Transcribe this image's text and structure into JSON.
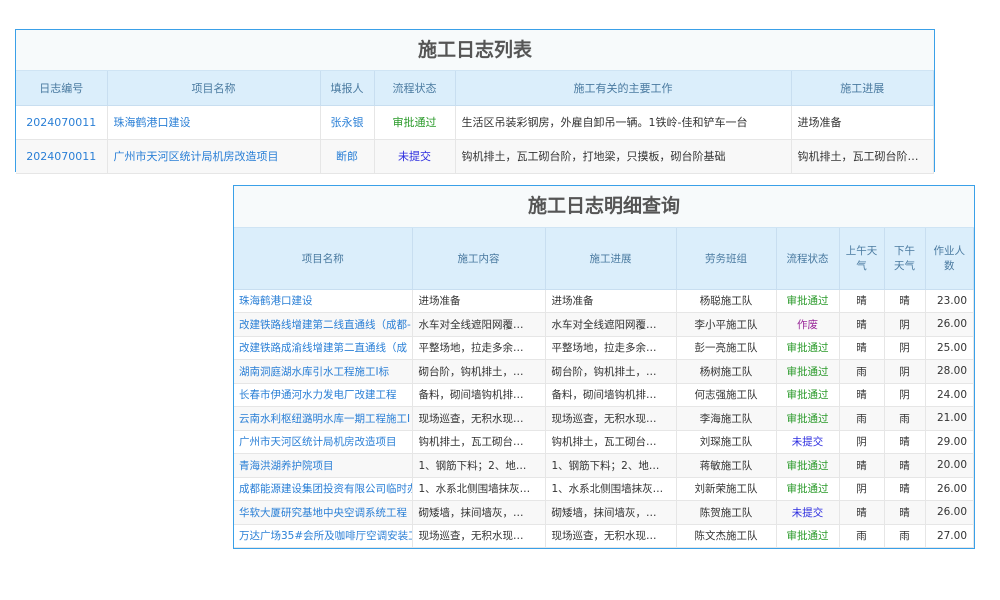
{
  "list": {
    "title": "施工日志列表",
    "headers": [
      "日志编号",
      "项目名称",
      "填报人",
      "流程状态",
      "施工有关的主要工作",
      "施工进展"
    ],
    "rows": [
      {
        "id": "2024070011",
        "project": "珠海鹤港口建设",
        "reporter": "张永银",
        "status": "审批通过",
        "work": "生活区吊装彩钢房，外雇自卸吊一辆。1铁岭-佳和铲车一台",
        "progress": "进场准备"
      },
      {
        "id": "2024070011",
        "project": "广州市天河区统计局机房改造项目",
        "reporter": "断郎",
        "status": "未提交",
        "work": "钩机排土，瓦工砌台阶，打地梁，只摸板，砌台阶基础",
        "progress": "钩机排土，瓦工砌台阶基础"
      }
    ]
  },
  "detail": {
    "title": "施工日志明细查询",
    "headers": [
      "项目名称",
      "施工内容",
      "施工进展",
      "劳务班组",
      "流程状态",
      "上午天气",
      "下午天气",
      "作业人数"
    ],
    "rows": [
      {
        "project": "珠海鹤港口建设",
        "content": "进场准备",
        "progress": "进场准备",
        "team": "杨聪施工队",
        "status": "审批通过",
        "am": "晴",
        "pm": "晴",
        "workers": "23.00"
      },
      {
        "project": "改建铁路线增建第二线直通线（成都-",
        "content": "水车对全线遮阳网覆…",
        "progress": "水车对全线遮阳网覆…",
        "team": "李小平施工队",
        "status": "作废",
        "am": "晴",
        "pm": "阴",
        "workers": "26.00"
      },
      {
        "project": "改建铁路成渝线增建第二直通线（成",
        "content": "平整场地，拉走多余…",
        "progress": "平整场地，拉走多余…",
        "team": "彭一亮施工队",
        "status": "审批通过",
        "am": "晴",
        "pm": "阴",
        "workers": "25.00"
      },
      {
        "project": "湖南洞庭湖水库引水工程施工I标",
        "content": "砌台阶，钩机排土，…",
        "progress": "砌台阶，钩机排土，…",
        "team": "杨树施工队",
        "status": "审批通过",
        "am": "雨",
        "pm": "阴",
        "workers": "28.00"
      },
      {
        "project": "长春市伊通河水力发电厂改建工程",
        "content": "备料，砌间墙钩机排…",
        "progress": "备料，砌间墙钩机排…",
        "team": "何志强施工队",
        "status": "审批通过",
        "am": "晴",
        "pm": "阴",
        "workers": "24.00"
      },
      {
        "project": "云南水利枢纽潞明水库一期工程施工I",
        "content": "现场巡查，无积水现…",
        "progress": "现场巡查，无积水现…",
        "team": "李海施工队",
        "status": "审批通过",
        "am": "雨",
        "pm": "雨",
        "workers": "21.00"
      },
      {
        "project": "广州市天河区统计局机房改造项目",
        "content": "钩机排土，瓦工砌台…",
        "progress": "钩机排土，瓦工砌台…",
        "team": "刘琛施工队",
        "status": "未提交",
        "am": "阴",
        "pm": "晴",
        "workers": "29.00"
      },
      {
        "project": "青海洪湖养护院项目",
        "content": "1、钢筋下料；2、地…",
        "progress": "1、钢筋下料；2、地…",
        "team": "蒋敏施工队",
        "status": "审批通过",
        "am": "晴",
        "pm": "晴",
        "workers": "20.00"
      },
      {
        "project": "成都能源建设集团投资有限公司临时办",
        "content": "1、水系北侧围墙抹灰…",
        "progress": "1、水系北侧围墙抹灰…",
        "team": "刘新荣施工队",
        "status": "审批通过",
        "am": "阴",
        "pm": "晴",
        "workers": "26.00"
      },
      {
        "project": "华软大厦研究基地中央空调系统工程",
        "content": "砌矮墙，抹间墙灰，…",
        "progress": "砌矮墙，抹间墙灰，…",
        "team": "陈贺施工队",
        "status": "未提交",
        "am": "晴",
        "pm": "晴",
        "workers": "26.00"
      },
      {
        "project": "万达广场35#会所及咖啡厅空调安装工",
        "content": "现场巡查，无积水现…",
        "progress": "现场巡查，无积水现…",
        "team": "陈文杰施工队",
        "status": "审批通过",
        "am": "雨",
        "pm": "雨",
        "workers": "27.00"
      }
    ]
  },
  "status_colors": {
    "审批通过": "#2a9a2a",
    "未提交": "#2a2adf",
    "作废": "#9a2a9a"
  }
}
